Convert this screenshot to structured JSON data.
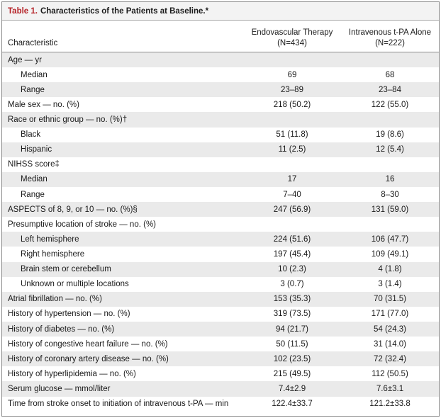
{
  "table": {
    "label": "Table 1.",
    "title": "Characteristics of the Patients at Baseline.*",
    "header": {
      "characteristic": "Characteristic",
      "col1_line1": "Endovascular Therapy",
      "col1_line2": "(N=434)",
      "col2_line1": "Intravenous t-PA Alone",
      "col2_line2": "(N=222)"
    },
    "rows": [
      {
        "label": "Age — yr",
        "v1": "",
        "v2": "",
        "indent": false
      },
      {
        "label": "Median",
        "v1": "69",
        "v2": "68",
        "indent": true
      },
      {
        "label": "Range",
        "v1": "23–89",
        "v2": "23–84",
        "indent": true
      },
      {
        "label": "Male sex — no. (%)",
        "v1": "218 (50.2)",
        "v2": "122 (55.0)",
        "indent": false
      },
      {
        "label": "Race or ethnic group — no. (%)†",
        "v1": "",
        "v2": "",
        "indent": false
      },
      {
        "label": "Black",
        "v1": "51 (11.8)",
        "v2": "19 (8.6)",
        "indent": true
      },
      {
        "label": "Hispanic",
        "v1": "11 (2.5)",
        "v2": "12 (5.4)",
        "indent": true
      },
      {
        "label": "NIHSS score‡",
        "v1": "",
        "v2": "",
        "indent": false
      },
      {
        "label": "Median",
        "v1": "17",
        "v2": "16",
        "indent": true
      },
      {
        "label": "Range",
        "v1": "7–40",
        "v2": "8–30",
        "indent": true
      },
      {
        "label": "ASPECTS of 8, 9, or 10 — no. (%)§",
        "v1": "247 (56.9)",
        "v2": "131 (59.0)",
        "indent": false
      },
      {
        "label": "Presumptive location of stroke — no. (%)",
        "v1": "",
        "v2": "",
        "indent": false
      },
      {
        "label": "Left hemisphere",
        "v1": "224 (51.6)",
        "v2": "106 (47.7)",
        "indent": true
      },
      {
        "label": "Right hemisphere",
        "v1": "197 (45.4)",
        "v2": "109 (49.1)",
        "indent": true
      },
      {
        "label": "Brain stem or cerebellum",
        "v1": "10 (2.3)",
        "v2": "4 (1.8)",
        "indent": true
      },
      {
        "label": "Unknown or multiple locations",
        "v1": "3 (0.7)",
        "v2": "3 (1.4)",
        "indent": true
      },
      {
        "label": "Atrial fibrillation — no. (%)",
        "v1": "153 (35.3)",
        "v2": "70 (31.5)",
        "indent": false
      },
      {
        "label": "History of hypertension — no. (%)",
        "v1": "319 (73.5)",
        "v2": "171 (77.0)",
        "indent": false
      },
      {
        "label": "History of diabetes — no. (%)",
        "v1": "94 (21.7)",
        "v2": "54 (24.3)",
        "indent": false
      },
      {
        "label": "History of congestive heart failure — no. (%)",
        "v1": "50 (11.5)",
        "v2": "31 (14.0)",
        "indent": false
      },
      {
        "label": "History of coronary artery disease — no. (%)",
        "v1": "102 (23.5)",
        "v2": "72 (32.4)",
        "indent": false
      },
      {
        "label": "History of hyperlipidemia — no. (%)",
        "v1": "215 (49.5)",
        "v2": "112 (50.5)",
        "indent": false
      },
      {
        "label": "Serum glucose — mmol/liter",
        "v1": "7.4±2.9",
        "v2": "7.6±3.1",
        "indent": false
      },
      {
        "label": "Time from stroke onset to initiation of intravenous t-PA — min",
        "v1": "122.4±33.7",
        "v2": "121.2±33.8",
        "indent": false
      }
    ]
  },
  "colors": {
    "label_red": "#b41f24",
    "shade": "#eaeaea"
  }
}
